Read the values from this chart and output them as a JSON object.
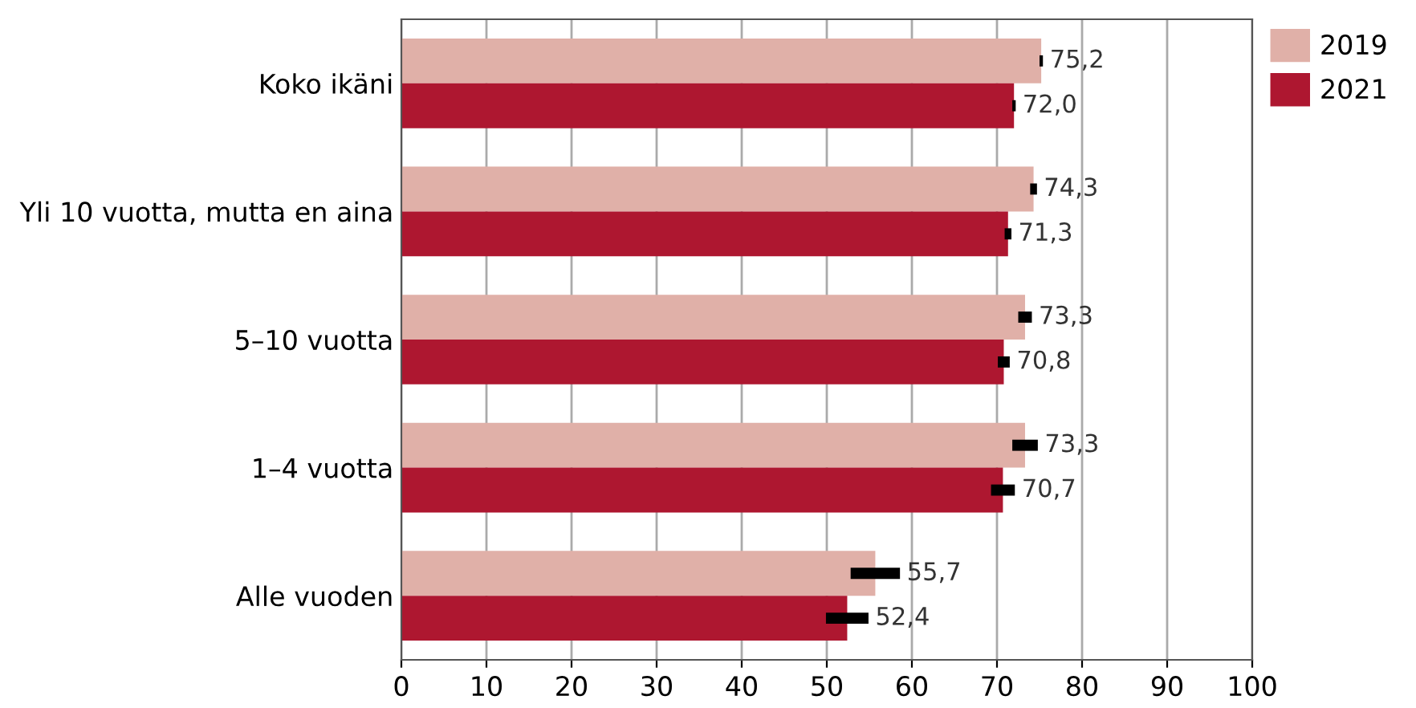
{
  "chart_data": {
    "type": "bar",
    "orientation": "horizontal",
    "categories": [
      "Koko ikäni",
      "Yli 10 vuotta, mutta en aina",
      "5–10 vuotta",
      "1–4 vuotta",
      "Alle vuoden"
    ],
    "series": [
      {
        "name": "2019",
        "color": "#e0b0a8",
        "values": [
          75.2,
          74.3,
          73.3,
          73.3,
          55.7
        ],
        "errors": [
          0.2,
          0.4,
          0.8,
          1.5,
          2.9
        ],
        "value_labels": [
          "75,2",
          "74,3",
          "73,3",
          "73,3",
          "55,7"
        ]
      },
      {
        "name": "2021",
        "color": "#ae1730",
        "values": [
          72.0,
          71.3,
          70.8,
          70.7,
          52.4
        ],
        "errors": [
          0.2,
          0.4,
          0.7,
          1.4,
          2.5
        ],
        "value_labels": [
          "72,0",
          "71,3",
          "70,8",
          "70,7",
          "52,4"
        ]
      }
    ],
    "xlim": [
      0,
      100
    ],
    "xticks": [
      0,
      10,
      20,
      30,
      40,
      50,
      60,
      70,
      80,
      90,
      100
    ],
    "grid": "x",
    "legend": "top right"
  }
}
